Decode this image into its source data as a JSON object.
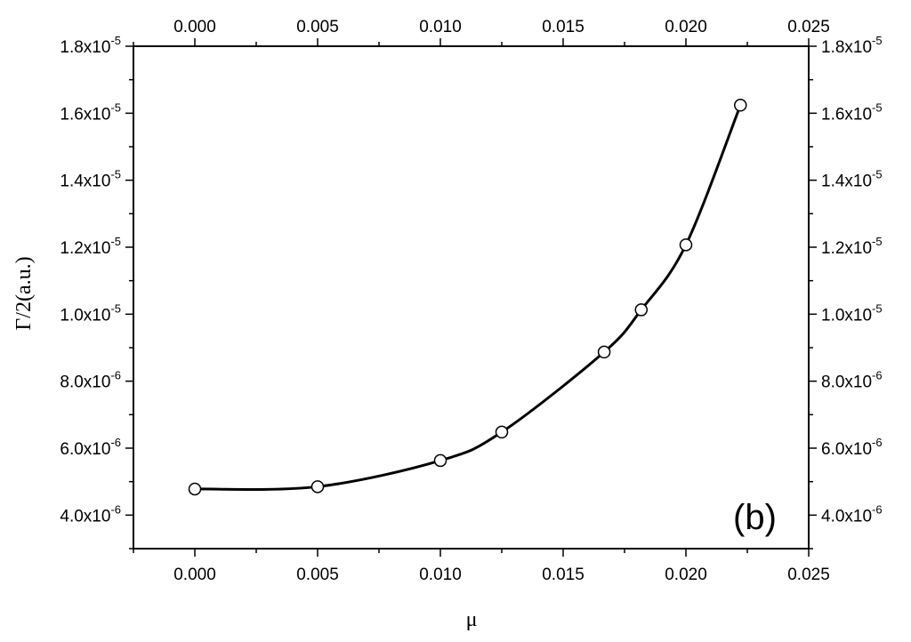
{
  "chart_data": {
    "type": "scatter",
    "panel_label": "(b)",
    "xlabel": "μ",
    "ylabel": "Γ/2(a.u.)",
    "xlim": [
      -0.0025,
      0.025
    ],
    "ylim": [
      3e-06,
      1.8e-05
    ],
    "x_ticks": [
      {
        "value": 0.0,
        "label": "0.000"
      },
      {
        "value": 0.005,
        "label": "0.005"
      },
      {
        "value": 0.01,
        "label": "0.010"
      },
      {
        "value": 0.015,
        "label": "0.015"
      },
      {
        "value": 0.02,
        "label": "0.020"
      },
      {
        "value": 0.025,
        "label": "0.025"
      }
    ],
    "y_ticks": [
      {
        "value": 4e-06,
        "mantissa": "4.0x10",
        "exponent": "-6"
      },
      {
        "value": 6e-06,
        "mantissa": "6.0x10",
        "exponent": "-6"
      },
      {
        "value": 8e-06,
        "mantissa": "8.0x10",
        "exponent": "-6"
      },
      {
        "value": 1e-05,
        "mantissa": "1.0x10",
        "exponent": "-5"
      },
      {
        "value": 1.2e-05,
        "mantissa": "1.2x10",
        "exponent": "-5"
      },
      {
        "value": 1.4e-05,
        "mantissa": "1.4x10",
        "exponent": "-5"
      },
      {
        "value": 1.6e-05,
        "mantissa": "1.6x10",
        "exponent": "-5"
      },
      {
        "value": 1.8e-05,
        "mantissa": "1.8x10",
        "exponent": "-5"
      }
    ],
    "grid": false,
    "marker": "open-circle",
    "line": "smooth-curve-through-points",
    "series": [
      {
        "x": [
          0.0,
          0.005,
          0.01,
          0.0125,
          0.01667,
          0.01818,
          0.02,
          0.02222
        ],
        "y": [
          4.78e-06,
          4.85e-06,
          5.63e-06,
          6.48e-06,
          8.87e-06,
          1.013e-05,
          1.207e-05,
          1.624e-05
        ]
      }
    ]
  }
}
